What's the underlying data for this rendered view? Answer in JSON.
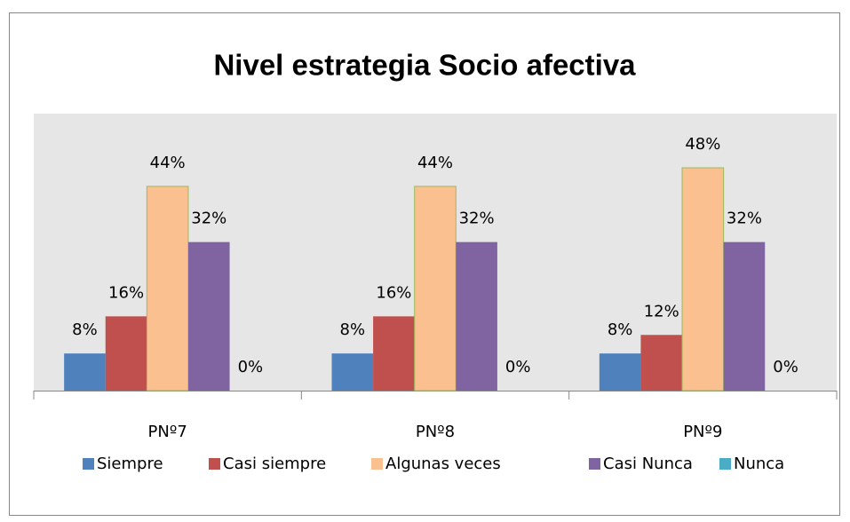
{
  "chart_data": {
    "type": "bar",
    "title": "Nivel estrategia Socio afectiva",
    "categories": [
      "PNº7",
      "PNº8",
      "PNº9"
    ],
    "series": [
      {
        "name": "Siempre",
        "color": "#4f81bd",
        "values": [
          8,
          8,
          8
        ],
        "value_labels": [
          "8%",
          "8%",
          "8%"
        ]
      },
      {
        "name": "Casi siempre",
        "color": "#c0504d",
        "values": [
          16,
          16,
          12
        ],
        "value_labels": [
          "16%",
          "16%",
          "12%"
        ]
      },
      {
        "name": "Algunas veces",
        "color": "#fac090",
        "values": [
          44,
          44,
          48
        ],
        "value_labels": [
          "44%",
          "44%",
          "48%"
        ]
      },
      {
        "name": "Casi Nunca",
        "color": "#8064a2",
        "values": [
          32,
          32,
          32
        ],
        "value_labels": [
          "32%",
          "32%",
          "32%"
        ]
      },
      {
        "name": "Nunca",
        "color": "#4bacc6",
        "values": [
          0,
          0,
          0
        ],
        "value_labels": [
          "0%",
          "0%",
          "0%"
        ]
      }
    ],
    "legend": "bottom"
  }
}
